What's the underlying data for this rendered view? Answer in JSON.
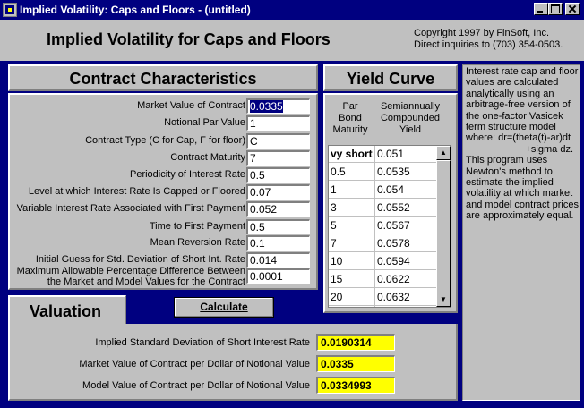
{
  "window": {
    "title": "Implied Volatility: Caps and Floors - (untitled)"
  },
  "header": {
    "title": "Implied Volatility for Caps and Floors",
    "copyright_line1": "Copyright 1997 by FinSoft, Inc.",
    "copyright_line2": "Direct inquiries to (703) 354-0503."
  },
  "contract": {
    "title": "Contract Characteristics",
    "fields": [
      {
        "label": "Market Value of Contract",
        "value": "0.0335"
      },
      {
        "label": "Notional Par Value",
        "value": "1"
      },
      {
        "label": "Contract Type (C for Cap, F for floor)",
        "value": "C"
      },
      {
        "label": "Contract Maturity",
        "value": "7"
      },
      {
        "label": "Periodicity of Interest Rate",
        "value": "0.5"
      },
      {
        "label": "Level at which Interest Rate Is Capped or Floored",
        "value": "0.07"
      },
      {
        "label": "Variable Interest Rate Associated with First Payment",
        "value": "0.052"
      },
      {
        "label": "Time to First Payment",
        "value": "0.5"
      },
      {
        "label": "Mean Reversion Rate",
        "value": "0.1"
      },
      {
        "label": "Initial Guess for Std. Deviation of Short Int. Rate",
        "value": "0.014"
      },
      {
        "label_line1": "Maximum Allowable Percentage Difference Between",
        "label_line2": "the Market and Model Values for the Contract",
        "value": "0.0001"
      }
    ]
  },
  "yield_curve": {
    "title": "Yield Curve",
    "col1_line1": "Par",
    "col1_line2": "Bond",
    "col1_line3": "Maturity",
    "col2_line1": "Semiannually",
    "col2_line2": "Compounded",
    "col2_line3": "Yield",
    "rows": [
      {
        "maturity": "vy short",
        "yield": "0.051"
      },
      {
        "maturity": "0.5",
        "yield": "0.0535"
      },
      {
        "maturity": "1",
        "yield": "0.054"
      },
      {
        "maturity": "3",
        "yield": "0.0552"
      },
      {
        "maturity": "5",
        "yield": "0.0567"
      },
      {
        "maturity": "7",
        "yield": "0.0578"
      },
      {
        "maturity": "10",
        "yield": "0.0594"
      },
      {
        "maturity": "15",
        "yield": "0.0622"
      },
      {
        "maturity": "20",
        "yield": "0.0632"
      }
    ]
  },
  "info": {
    "text": "Interest rate cap and floor values are calculated analytically using an arbitrage-free version of the one-factor Vasicek term structure model where: dr=(theta(t)-ar)dt",
    "formula_cont": "+sigma dz.",
    "text2": "This program uses Newton's method to estimate the implied volatility at which market and model contract prices are approximately equal."
  },
  "valuation": {
    "tab_label": "Valuation",
    "calculate_label": "Calculate",
    "results": [
      {
        "label": "Implied Standard Deviation of Short Interest Rate",
        "value": "0.0190314"
      },
      {
        "label": "Market Value of Contract per Dollar of Notional Value",
        "value": "0.0335"
      },
      {
        "label": "Model Value of Contract per Dollar of Notional Value",
        "value": "0.0334993"
      }
    ]
  }
}
